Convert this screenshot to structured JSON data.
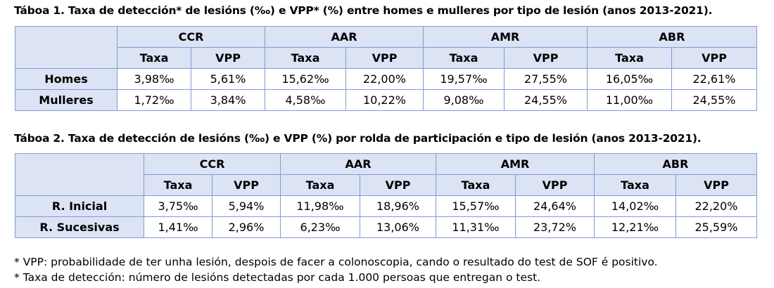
{
  "table1": {
    "caption": "Táboa 1. Taxa de detección* de lesións (‰) e VPP* (%) entre homes e mulleres por tipo de lesión (anos 2013-2021).",
    "groups": [
      "CCR",
      "AAR",
      "AMR",
      "ABR"
    ],
    "subheaders": [
      "Taxa",
      "VPP",
      "Taxa",
      "VPP",
      "Taxa",
      "VPP",
      "Taxa",
      "VPP"
    ],
    "rows": [
      {
        "label": "Homes",
        "cells": [
          "3,98‰",
          "5,61%",
          "15,62‰",
          "22,00%",
          "19,57‰",
          "27,55%",
          "16,05‰",
          "22,61%"
        ]
      },
      {
        "label": "Mulleres",
        "cells": [
          "1,72‰",
          "3,84%",
          "4,58‰",
          "10,22%",
          "9,08‰",
          "24,55%",
          "11,00‰",
          "24,55%"
        ]
      }
    ]
  },
  "table2": {
    "caption": "Táboa 2. Taxa de detección de lesións (‰) e VPP (%) por rolda de participación e tipo de lesión (anos 2013-2021).",
    "groups": [
      "CCR",
      "AAR",
      "AMR",
      "ABR"
    ],
    "subheaders": [
      "Taxa",
      "VPP",
      "Taxa",
      "VPP",
      "Taxa",
      "VPP",
      "Taxa",
      "VPP"
    ],
    "rows": [
      {
        "label": "R. Inicial",
        "cells": [
          "3,75‰",
          "5,94%",
          "11,98‰",
          "18,96%",
          "15,57‰",
          "24,64%",
          "14,02‰",
          "22,20%"
        ]
      },
      {
        "label": "R. Sucesivas",
        "cells": [
          "1,41‰",
          "2,96%",
          "6,23‰",
          "13,06%",
          "11,31‰",
          "23,72%",
          "12,21‰",
          "25,59%"
        ]
      }
    ]
  },
  "notes": [
    "* VPP: probabilidade de ter unha lesión, despois de facer a colonoscopia, cando o resultado do test de SOF é positivo.",
    "* Taxa de detección: número de lesións detectadas por cada 1.000 persoas que entregan o test."
  ]
}
